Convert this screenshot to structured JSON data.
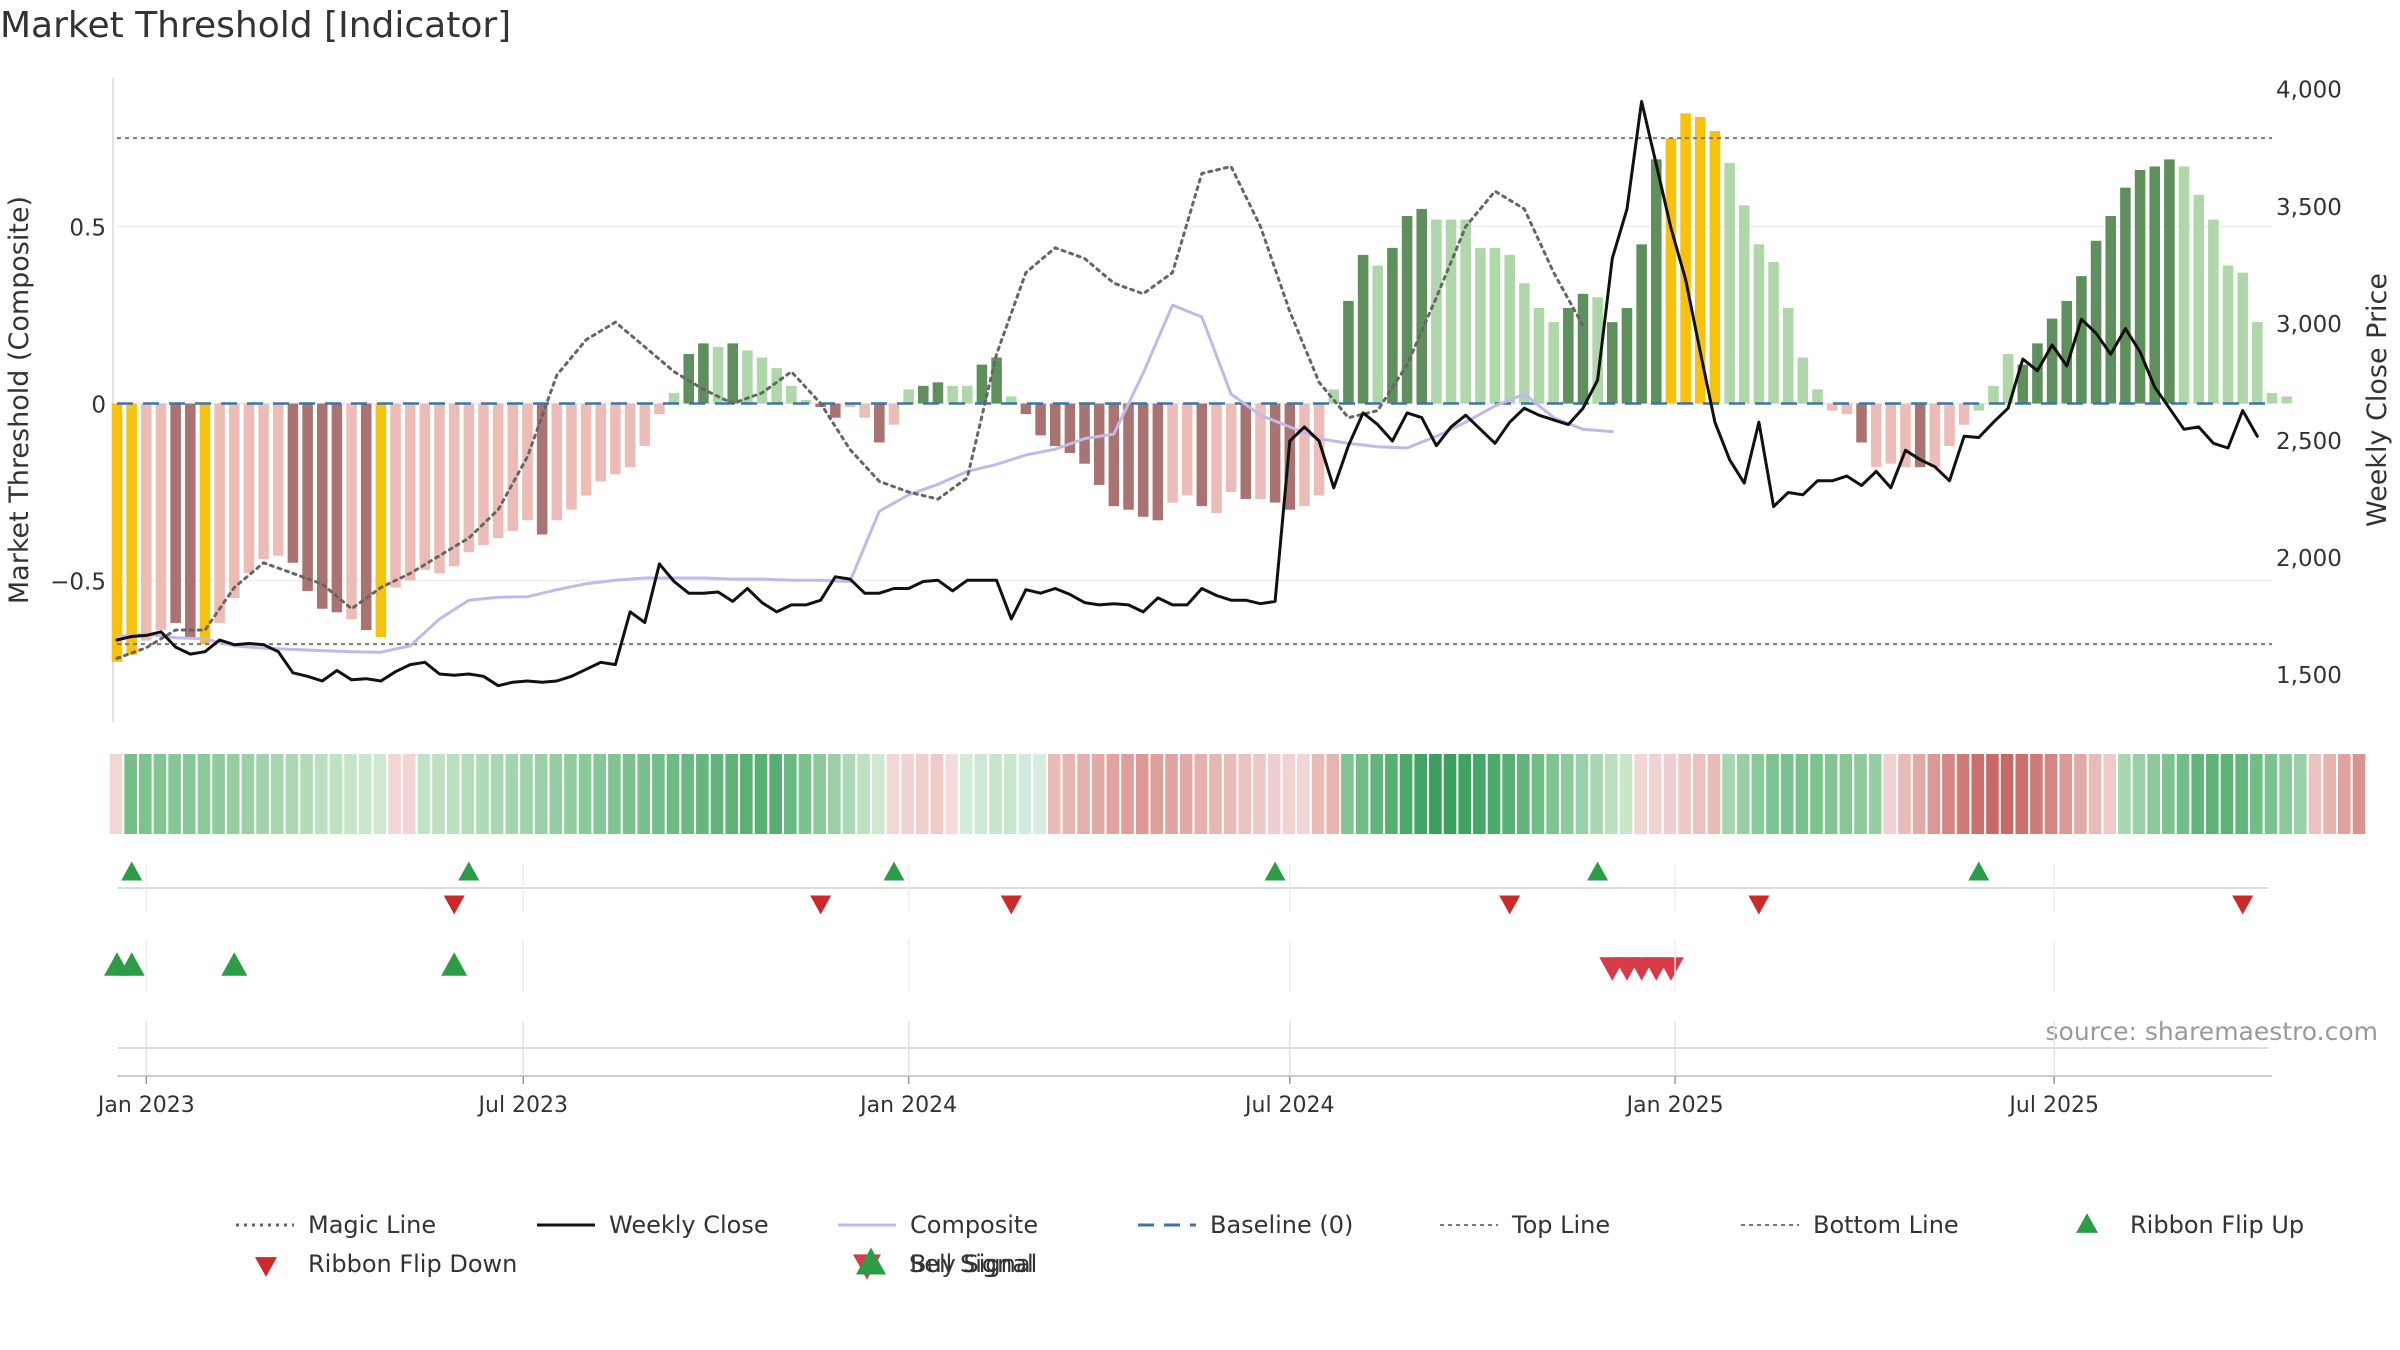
{
  "chart_data": {
    "type": "bar",
    "title": "Market Threshold [Indicator]",
    "ylabel_left": "Market Threshold (Composite)",
    "ylabel_right": "Weekly Close Price",
    "source": "source: sharemaestro.com",
    "x_range": [
      "2022-12-19",
      "2025-10-13"
    ],
    "x_ticks": [
      {
        "date": "2023-01-02",
        "label": "Jan 2023"
      },
      {
        "date": "2023-07-01",
        "label": "Jul 2023"
      },
      {
        "date": "2024-01-01",
        "label": "Jan 2024"
      },
      {
        "date": "2024-07-01",
        "label": "Jul 2024"
      },
      {
        "date": "2025-01-01",
        "label": "Jan 2025"
      },
      {
        "date": "2025-07-01",
        "label": "Jul 2025"
      }
    ],
    "ylim_left": [
      -0.9,
      0.92
    ],
    "y_ticks_left": [
      {
        "value": 0.5,
        "label": "0.5"
      },
      {
        "value": 0,
        "label": "0"
      },
      {
        "value": -0.5,
        "label": "−0.5"
      }
    ],
    "ylim_right": [
      1300,
      4050
    ],
    "y_ticks_right": [
      {
        "value": 4000,
        "label": "4,000"
      },
      {
        "value": 3500,
        "label": "3,500"
      },
      {
        "value": 3000,
        "label": "3,000"
      },
      {
        "value": 2500,
        "label": "2,500"
      },
      {
        "value": 2000,
        "label": "2,000"
      },
      {
        "value": 1500,
        "label": "1,500"
      }
    ],
    "top_line": 0.75,
    "bottom_line": -0.68,
    "colors": {
      "magic_line": "#666666",
      "weekly_close": "#111111",
      "composite": "#c3b8ea",
      "baseline": "#3b75a8",
      "top_bottom_line": "#777777",
      "buy": "#2a9d46",
      "sell": "#d63c47",
      "flip_up": "#2a9d46",
      "flip_down": "#cc2a2a",
      "bar_dark_green": "#5f8f5c",
      "bar_light_green": "#afd7aa",
      "bar_dark_red": "#a87370",
      "bar_light_red": "#ebbdb6",
      "bar_highlight": "#f7c10f"
    },
    "bar_series": {
      "start": "2022-12-19",
      "interval_days": 7,
      "values": [
        -0.73,
        -0.71,
        -0.67,
        -0.64,
        -0.62,
        -0.66,
        -0.68,
        -0.62,
        -0.55,
        -0.48,
        -0.44,
        -0.43,
        -0.45,
        -0.53,
        -0.58,
        -0.59,
        -0.61,
        -0.64,
        -0.66,
        -0.52,
        -0.5,
        -0.47,
        -0.48,
        -0.46,
        -0.42,
        -0.4,
        -0.38,
        -0.36,
        -0.33,
        -0.37,
        -0.33,
        -0.3,
        -0.26,
        -0.22,
        -0.2,
        -0.18,
        -0.12,
        -0.03,
        0.03,
        0.14,
        0.17,
        0.16,
        0.17,
        0.15,
        0.13,
        0.1,
        0.05,
        0.01,
        -0.01,
        -0.04,
        -0.01,
        -0.04,
        -0.11,
        -0.06,
        0.04,
        0.05,
        0.06,
        0.05,
        0.05,
        0.11,
        0.13,
        0.02,
        -0.03,
        -0.09,
        -0.12,
        -0.14,
        -0.17,
        -0.23,
        -0.29,
        -0.3,
        -0.32,
        -0.33,
        -0.28,
        -0.26,
        -0.29,
        -0.31,
        -0.25,
        -0.27,
        -0.27,
        -0.28,
        -0.3,
        -0.29,
        -0.26,
        0.04,
        0.29,
        0.42,
        0.39,
        0.44,
        0.53,
        0.55,
        0.52,
        0.52,
        0.52,
        0.44,
        0.44,
        0.42,
        0.34,
        0.27,
        0.23,
        0.27,
        0.31,
        0.3,
        0.23,
        0.27,
        0.45,
        0.69,
        0.75,
        0.82,
        0.81,
        0.77,
        0.68,
        0.56,
        0.45,
        0.4,
        0.27,
        0.13,
        0.04,
        -0.02,
        -0.03,
        -0.11,
        -0.18,
        -0.17,
        -0.18,
        -0.18,
        -0.18,
        -0.12,
        -0.06,
        -0.02,
        0.05,
        0.14,
        0.11,
        0.17,
        0.24,
        0.29,
        0.36,
        0.46,
        0.53,
        0.61,
        0.66,
        0.67,
        0.69,
        0.67,
        0.59,
        0.52,
        0.39,
        0.37,
        0.23,
        0.03,
        0.02
      ],
      "colors": [
        "highlight",
        "highlight",
        "light_red",
        "light_red",
        "dark_red",
        "dark_red",
        "highlight",
        "light_red",
        "light_red",
        "light_red",
        "light_red",
        "light_red",
        "dark_red",
        "dark_red",
        "dark_red",
        "dark_red",
        "light_red",
        "dark_red",
        "highlight",
        "light_red",
        "light_red",
        "light_red",
        "light_red",
        "light_red",
        "light_red",
        "light_red",
        "light_red",
        "light_red",
        "light_red",
        "dark_red",
        "light_red",
        "light_red",
        "light_red",
        "light_red",
        "light_red",
        "light_red",
        "light_red",
        "light_red",
        "light_green",
        "dark_green",
        "dark_green",
        "light_green",
        "dark_green",
        "light_green",
        "light_green",
        "light_green",
        "light_green",
        "light_green",
        "dark_red",
        "dark_red",
        "light_red",
        "light_red",
        "dark_red",
        "light_red",
        "light_green",
        "dark_green",
        "dark_green",
        "light_green",
        "light_green",
        "dark_green",
        "dark_green",
        "light_green",
        "dark_red",
        "dark_red",
        "dark_red",
        "dark_red",
        "dark_red",
        "dark_red",
        "dark_red",
        "dark_red",
        "dark_red",
        "dark_red",
        "light_red",
        "light_red",
        "dark_red",
        "light_red",
        "light_red",
        "dark_red",
        "light_red",
        "dark_red",
        "dark_red",
        "light_red",
        "light_red",
        "light_green",
        "dark_green",
        "dark_green",
        "light_green",
        "dark_green",
        "dark_green",
        "dark_green",
        "light_green",
        "light_green",
        "light_green",
        "light_green",
        "light_green",
        "light_green",
        "light_green",
        "light_green",
        "light_green",
        "dark_green",
        "dark_green",
        "light_green",
        "dark_green",
        "dark_green",
        "dark_green",
        "dark_green",
        "highlight",
        "highlight",
        "highlight",
        "highlight",
        "light_green",
        "light_green",
        "light_green",
        "light_green",
        "light_green",
        "light_green",
        "light_green",
        "light_red",
        "light_red",
        "dark_red",
        "light_red",
        "light_red",
        "light_red",
        "dark_red",
        "light_red",
        "light_red",
        "light_red",
        "light_green",
        "light_green",
        "light_green",
        "dark_green",
        "dark_green",
        "dark_green",
        "dark_green",
        "dark_green",
        "dark_green",
        "dark_green",
        "dark_green",
        "dark_green",
        "dark_green",
        "dark_green",
        "light_green",
        "light_green",
        "light_green",
        "light_green",
        "light_green",
        "light_green",
        "light_green",
        "light_green"
      ]
    },
    "magic_line": {
      "start": "2022-12-19",
      "interval_days": 14,
      "values": [
        -0.72,
        -0.69,
        -0.64,
        -0.64,
        -0.52,
        -0.45,
        -0.48,
        -0.51,
        -0.58,
        -0.52,
        -0.48,
        -0.43,
        -0.38,
        -0.3,
        -0.15,
        0.08,
        0.18,
        0.23,
        0.16,
        0.09,
        0.04,
        0.0,
        0.03,
        0.09,
        0.0,
        -0.13,
        -0.22,
        -0.25,
        -0.27,
        -0.21,
        0.14,
        0.37,
        0.44,
        0.41,
        0.34,
        0.31,
        0.37,
        0.65,
        0.67,
        0.5,
        0.26,
        0.06,
        -0.04,
        -0.02,
        0.11,
        0.3,
        0.5,
        0.6,
        0.55,
        0.37,
        0.22
      ]
    },
    "composite": {
      "start": "2022-12-19",
      "interval_days": 14,
      "values": [
        1665,
        1675,
        1660,
        1655,
        1625,
        1615,
        1610,
        1605,
        1600,
        1598,
        1625,
        1740,
        1820,
        1833,
        1835,
        1865,
        1890,
        1905,
        1915,
        1915,
        1915,
        1910,
        1910,
        1905,
        1905,
        1900,
        2200,
        2270,
        2315,
        2370,
        2400,
        2440,
        2465,
        2510,
        2530,
        2790,
        3080,
        3030,
        2700,
        2610,
        2560,
        2510,
        2490,
        2475,
        2470,
        2520,
        2580,
        2650,
        2700,
        2600,
        2550,
        2540
      ]
    },
    "weekly_close": {
      "start": "2022-12-19",
      "interval_days": 7,
      "values": [
        1650,
        1665,
        1670,
        1685,
        1620,
        1590,
        1600,
        1650,
        1630,
        1635,
        1630,
        1600,
        1510,
        1495,
        1475,
        1520,
        1480,
        1485,
        1475,
        1515,
        1545,
        1555,
        1505,
        1500,
        1505,
        1495,
        1455,
        1470,
        1475,
        1470,
        1475,
        1495,
        1525,
        1555,
        1545,
        1770,
        1725,
        1975,
        1900,
        1850,
        1850,
        1855,
        1815,
        1870,
        1810,
        1770,
        1800,
        1800,
        1820,
        1920,
        1910,
        1850,
        1850,
        1870,
        1870,
        1900,
        1905,
        1860,
        1905,
        1905,
        1905,
        1740,
        1865,
        1850,
        1870,
        1845,
        1810,
        1800,
        1805,
        1800,
        1770,
        1830,
        1800,
        1800,
        1870,
        1840,
        1820,
        1820,
        1805,
        1815,
        2500,
        2560,
        2500,
        2300,
        2480,
        2620,
        2570,
        2500,
        2620,
        2600,
        2480,
        2560,
        2610,
        2550,
        2490,
        2580,
        2640,
        2610,
        2590,
        2570,
        2640,
        2760,
        3280,
        3490,
        3950,
        3680,
        3410,
        3190,
        2880,
        2580,
        2420,
        2320,
        2580,
        2220,
        2280,
        2270,
        2330,
        2330,
        2350,
        2310,
        2370,
        2300,
        2460,
        2420,
        2390,
        2330,
        2520,
        2515,
        2580,
        2640,
        2850,
        2800,
        2910,
        2820,
        3020,
        2960,
        2870,
        2980,
        2880,
        2730,
        2640,
        2550,
        2560,
        2490,
        2470,
        2630,
        2520
      ]
    },
    "ribbon": {
      "start": "2022-12-19",
      "interval_days": 7,
      "colors": [
        "#f2d7d5",
        "#77bf87",
        "#7dc38d",
        "#82c591",
        "#85c694",
        "#88c796",
        "#8cc999",
        "#91cb9d",
        "#96cea2",
        "#9bd0a6",
        "#a0d3ab",
        "#a6d6b0",
        "#acd8b5",
        "#b2dbba",
        "#b8dfbe",
        "#bee2c4",
        "#c4e5c8",
        "#c9e7cc",
        "#cee9d0",
        "#f3d6d4",
        "#f3d4d3",
        "#c2e3c6",
        "#bde1c2",
        "#b8dfbe",
        "#b3dcbb",
        "#aedab7",
        "#a9d7b3",
        "#a4d5af",
        "#9fd3ab",
        "#9ad0a7",
        "#95cea3",
        "#90cc9f",
        "#8bc99b",
        "#86c797",
        "#81c493",
        "#7cc28f",
        "#78c08c",
        "#73be88",
        "#6ebb84",
        "#6ab981",
        "#65b77d",
        "#61b57a",
        "#5eb377",
        "#5bb275",
        "#58b072",
        "#55af70",
        "#6ab981",
        "#7ac18e",
        "#8bc99b",
        "#9bd0a7",
        "#acd8b5",
        "#bde1c2",
        "#cee9d0",
        "#f2d7d5",
        "#f1d3d1",
        "#f0cfcd",
        "#efcac8",
        "#f4dad8",
        "#d5ebd7",
        "#cde8d0",
        "#c6e5ca",
        "#c9e7cc",
        "#d1eadd",
        "#d6ece0",
        "#e8bcb9",
        "#e6b6b3",
        "#e4b0ad",
        "#e2aaa6",
        "#e0a4a0",
        "#de9e9a",
        "#dc9894",
        "#de9e9a",
        "#e0a4a0",
        "#e2aaa6",
        "#e4b0ad",
        "#e6b6b3",
        "#e8bcb9",
        "#eac2bf",
        "#ecc8c5",
        "#eecece",
        "#f0d2d0",
        "#f1d6d4",
        "#e9bbb8",
        "#e7b5b2",
        "#80c492",
        "#70bd86",
        "#63b67b",
        "#56b072",
        "#4ba96a",
        "#40a463",
        "#3b9f5e",
        "#3b9f5e",
        "#3fa361",
        "#45a767",
        "#4caa6b",
        "#56b072",
        "#63b67b",
        "#70bd86",
        "#7dc390",
        "#8cc99b",
        "#9ad0a7",
        "#a9d7b3",
        "#b8dfbe",
        "#c7e6ca",
        "#f2d6d4",
        "#f0d2d0",
        "#eecece",
        "#ecc8c5",
        "#eac2bf",
        "#e8bcb9",
        "#a6d6b0",
        "#97cfa3",
        "#89c897",
        "#7dc38d",
        "#7ac18e",
        "#7ac18e",
        "#7dc38d",
        "#82c591",
        "#88c796",
        "#8fca9b",
        "#96cea2",
        "#f0d2d0",
        "#e9bbb8",
        "#e2aaa6",
        "#db9894",
        "#d48782",
        "#cf7b76",
        "#ca6f6a",
        "#c76966",
        "#c76966",
        "#ca6f6a",
        "#cf7b76",
        "#d48782",
        "#db9894",
        "#e2aaa6",
        "#e9bbb8",
        "#efcac8",
        "#a9d7b3",
        "#9ad0a7",
        "#8bc99b",
        "#7dc390",
        "#70bd86",
        "#63b67b",
        "#5eb377",
        "#5eb377",
        "#63b67b",
        "#70bd86",
        "#7dc390",
        "#8bc99b",
        "#9ad0a7",
        "#eac2bf",
        "#e5b3b0",
        "#dfa29e",
        "#d89590"
      ]
    },
    "flip_up_dates": [
      "2022-12-26",
      "2023-06-05",
      "2023-12-25",
      "2024-06-24",
      "2024-11-25",
      "2025-05-26"
    ],
    "flip_down_dates": [
      "2023-05-29",
      "2023-11-20",
      "2024-02-19",
      "2024-10-14",
      "2025-02-10",
      "2025-09-29"
    ],
    "buy_signal_dates": [
      "2022-12-19",
      "2022-12-26",
      "2023-02-13",
      "2023-05-29"
    ],
    "sell_signal_dates": [
      "2024-12-02",
      "2024-12-09",
      "2024-12-16",
      "2024-12-23",
      "2024-12-30"
    ],
    "legend": [
      {
        "key": "magic",
        "label": "Magic Line"
      },
      {
        "key": "close",
        "label": "Weekly Close"
      },
      {
        "key": "composite",
        "label": "Composite"
      },
      {
        "key": "baseline",
        "label": "Baseline (0)"
      },
      {
        "key": "top",
        "label": "Top Line"
      },
      {
        "key": "bottom",
        "label": "Bottom Line"
      },
      {
        "key": "flipup",
        "label": "Ribbon Flip Up"
      },
      {
        "key": "flipdown",
        "label": "Ribbon Flip Down"
      },
      {
        "key": "sell",
        "label": "Sell Signal"
      },
      {
        "key": "buy",
        "label": "Buy Signal"
      }
    ]
  }
}
